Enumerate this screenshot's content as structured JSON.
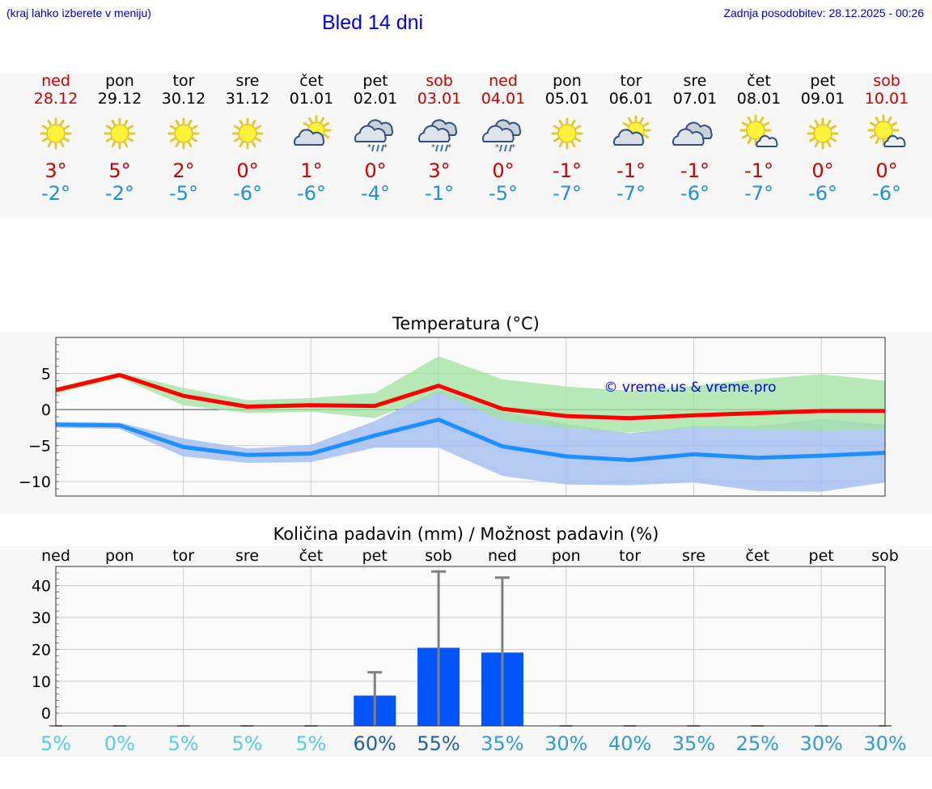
{
  "header": {
    "hint": "(kraj lahko izberete v meniju)",
    "title": "Bled 14 dni",
    "updated": "Zadnja posodobitev: 28.12.2025 - 00:26"
  },
  "days": [
    {
      "name": "ned",
      "date": "28.12",
      "weekend": true,
      "icon": "sun-icon",
      "tmax": "3°",
      "tmin": "-2°"
    },
    {
      "name": "pon",
      "date": "29.12",
      "weekend": false,
      "icon": "sun-icon",
      "tmax": "5°",
      "tmin": "-2°"
    },
    {
      "name": "tor",
      "date": "30.12",
      "weekend": false,
      "icon": "sun-icon",
      "tmax": "2°",
      "tmin": "-5°"
    },
    {
      "name": "sre",
      "date": "31.12",
      "weekend": false,
      "icon": "sun-icon",
      "tmax": "0°",
      "tmin": "-6°"
    },
    {
      "name": "čet",
      "date": "01.01",
      "weekend": false,
      "icon": "partly-cloudy-icon",
      "tmax": "1°",
      "tmin": "-6°"
    },
    {
      "name": "pet",
      "date": "02.01",
      "weekend": false,
      "icon": "cloud-sleet-icon",
      "tmax": "0°",
      "tmin": "-4°"
    },
    {
      "name": "sob",
      "date": "03.01",
      "weekend": true,
      "icon": "cloud-sleet-icon",
      "tmax": "3°",
      "tmin": "-1°"
    },
    {
      "name": "ned",
      "date": "04.01",
      "weekend": true,
      "icon": "cloud-sleet-icon",
      "tmax": "0°",
      "tmin": "-5°"
    },
    {
      "name": "pon",
      "date": "05.01",
      "weekend": false,
      "icon": "sun-icon",
      "tmax": "-1°",
      "tmin": "-7°"
    },
    {
      "name": "tor",
      "date": "06.01",
      "weekend": false,
      "icon": "partly-cloudy-icon",
      "tmax": "-1°",
      "tmin": "-7°"
    },
    {
      "name": "sre",
      "date": "07.01",
      "weekend": false,
      "icon": "cloudy-icon",
      "tmax": "-1°",
      "tmin": "-6°"
    },
    {
      "name": "čet",
      "date": "08.01",
      "weekend": false,
      "icon": "sun-small-cloud-icon",
      "tmax": "-1°",
      "tmin": "-7°"
    },
    {
      "name": "pet",
      "date": "09.01",
      "weekend": false,
      "icon": "sun-icon",
      "tmax": "0°",
      "tmin": "-6°"
    },
    {
      "name": "sob",
      "date": "10.01",
      "weekend": true,
      "icon": "sun-small-cloud-icon",
      "tmax": "0°",
      "tmin": "-6°"
    }
  ],
  "chart_data": [
    {
      "type": "line",
      "title": "Temperatura (°C)",
      "watermark": "© vreme.us & vreme.pro",
      "ylim": [
        -12,
        10
      ],
      "yticks": [
        5,
        0,
        -5,
        -10
      ],
      "ytick_labels": [
        "5",
        "0",
        "−5",
        "−10"
      ],
      "x": [
        0,
        1,
        2,
        3,
        4,
        5,
        6,
        7,
        8,
        9,
        10,
        11,
        12,
        13
      ],
      "series": [
        {
          "name": "max",
          "color": "#ff0000",
          "values": [
            2.7,
            4.8,
            1.9,
            0.4,
            0.6,
            0.5,
            3.3,
            0.1,
            -0.9,
            -1.2,
            -0.8,
            -0.5,
            -0.2,
            -0.2
          ],
          "band_low": [
            2.2,
            4.4,
            0.6,
            -0.5,
            -0.3,
            -1.2,
            2.3,
            -1.5,
            -2.6,
            -3.2,
            -2.5,
            -2.8,
            -3.0,
            -2.8
          ],
          "band_high": [
            3.1,
            5.1,
            3.0,
            1.3,
            1.6,
            2.3,
            7.4,
            4.2,
            3.2,
            2.6,
            3.3,
            4.2,
            4.9,
            4.0
          ],
          "band_color": "#9fe39f"
        },
        {
          "name": "min",
          "color": "#1e8fff",
          "values": [
            -2.1,
            -2.2,
            -5.2,
            -6.3,
            -6.1,
            -3.6,
            -1.4,
            -5.1,
            -6.5,
            -7.0,
            -6.2,
            -6.7,
            -6.4,
            -6.0
          ],
          "band_low": [
            -2.5,
            -2.7,
            -6.5,
            -7.4,
            -7.3,
            -5.3,
            -5.3,
            -9.2,
            -10.4,
            -10.5,
            -10.1,
            -11.3,
            -11.4,
            -10.1
          ],
          "band_high": [
            -1.7,
            -1.8,
            -4.0,
            -5.4,
            -4.9,
            -1.6,
            2.8,
            -0.3,
            -2.0,
            -3.3,
            -2.3,
            -2.3,
            -1.3,
            -2.1
          ],
          "band_color": "#a6c0f0"
        }
      ]
    },
    {
      "type": "bar",
      "title": "Količina padavin (mm) / Možnost padavin (%)",
      "categories": [
        "ned",
        "pon",
        "tor",
        "sre",
        "čet",
        "pet",
        "sob",
        "ned",
        "pon",
        "tor",
        "sre",
        "čet",
        "pet",
        "sob"
      ],
      "ylim": [
        -4,
        46
      ],
      "yticks": [
        40,
        30,
        20,
        10,
        0
      ],
      "ytick_labels": [
        "40",
        "30",
        "20",
        "10",
        "0"
      ],
      "values": [
        0,
        0,
        0,
        0,
        0,
        5.5,
        20.5,
        19,
        0,
        0,
        0,
        0,
        0,
        0
      ],
      "error_high": [
        0,
        0,
        0,
        0,
        0,
        12.8,
        44.4,
        42.5,
        0,
        0,
        0,
        0,
        0,
        0
      ],
      "bar_color": "#0055ff",
      "probability": [
        "5%",
        "0%",
        "5%",
        "5%",
        "5%",
        "60%",
        "55%",
        "35%",
        "30%",
        "40%",
        "35%",
        "25%",
        "30%",
        "30%"
      ],
      "probability_colors": [
        "#55cce8",
        "#55cce8",
        "#55cce8",
        "#55cce8",
        "#55cce8",
        "#1d5faa",
        "#1d5faa",
        "#2f9bd5",
        "#2f9bd5",
        "#2f9bd5",
        "#2f9bd5",
        "#2f9bd5",
        "#2f9bd5",
        "#2f9bd5"
      ]
    }
  ]
}
